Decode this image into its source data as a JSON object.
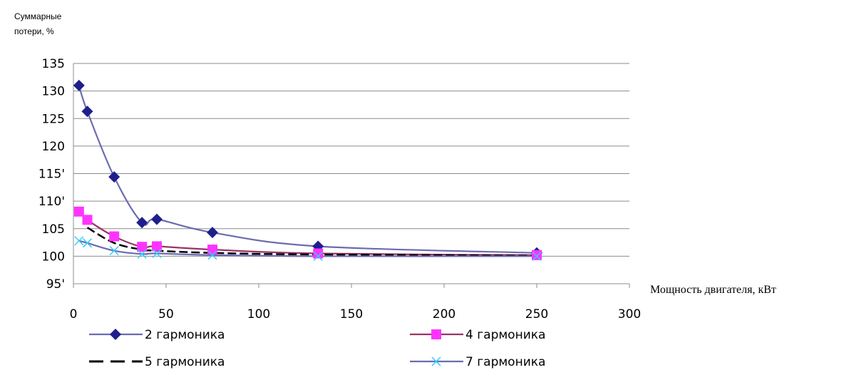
{
  "chart_data": {
    "type": "line",
    "title": "",
    "ylabel_lines": [
      "Суммарные",
      "потери, %"
    ],
    "xlabel": "Мощность двигателя, кВт",
    "xlim": [
      0,
      300
    ],
    "ylim": [
      95,
      135
    ],
    "x_ticks": [
      "0",
      "50",
      "100",
      "150",
      "200",
      "250",
      "300"
    ],
    "y_ticks": [
      "95'",
      "100",
      "105",
      "110'",
      "115'",
      "120",
      "125",
      "130",
      "135"
    ],
    "grid": "horizontal",
    "legend_position": "bottom",
    "series": [
      {
        "name": "2 гармоника",
        "color": "#6B6BB0",
        "marker": "diamond",
        "marker_color": "#1F1F8C",
        "points": [
          [
            3,
            131
          ],
          [
            7.5,
            126.3
          ],
          [
            22,
            114.4
          ],
          [
            37,
            106.1
          ],
          [
            45,
            106.7
          ],
          [
            75,
            104.3
          ],
          [
            132,
            101.8
          ],
          [
            250,
            100.6
          ]
        ]
      },
      {
        "name": "4 гармоника",
        "color": "#993366",
        "marker": "square",
        "marker_color": "#FF33FF",
        "points": [
          [
            3,
            108.1
          ],
          [
            7.5,
            106.6
          ],
          [
            22,
            103.6
          ],
          [
            37,
            101.7
          ],
          [
            45,
            101.8
          ],
          [
            75,
            101.2
          ],
          [
            132,
            100.5
          ],
          [
            250,
            100.2
          ]
        ]
      },
      {
        "name": "5 гармоника",
        "color": "#000000",
        "marker": "dash",
        "marker_color": "#000000",
        "points": [
          [
            7.5,
            105.2
          ],
          [
            22,
            102.4
          ],
          [
            37,
            101.2
          ],
          [
            45,
            101.0
          ],
          [
            75,
            100.6
          ],
          [
            132,
            100.3
          ],
          [
            250,
            100.1
          ]
        ]
      },
      {
        "name": "7 гармоника",
        "color": "#6B6BB0",
        "marker": "x",
        "marker_color": "#33CCFF",
        "points": [
          [
            3,
            102.8
          ],
          [
            7.5,
            102.4
          ],
          [
            22,
            101.0
          ],
          [
            37,
            100.4
          ],
          [
            45,
            100.5
          ],
          [
            75,
            100.2
          ],
          [
            132,
            100.0
          ],
          [
            250,
            100.0
          ]
        ]
      }
    ]
  }
}
